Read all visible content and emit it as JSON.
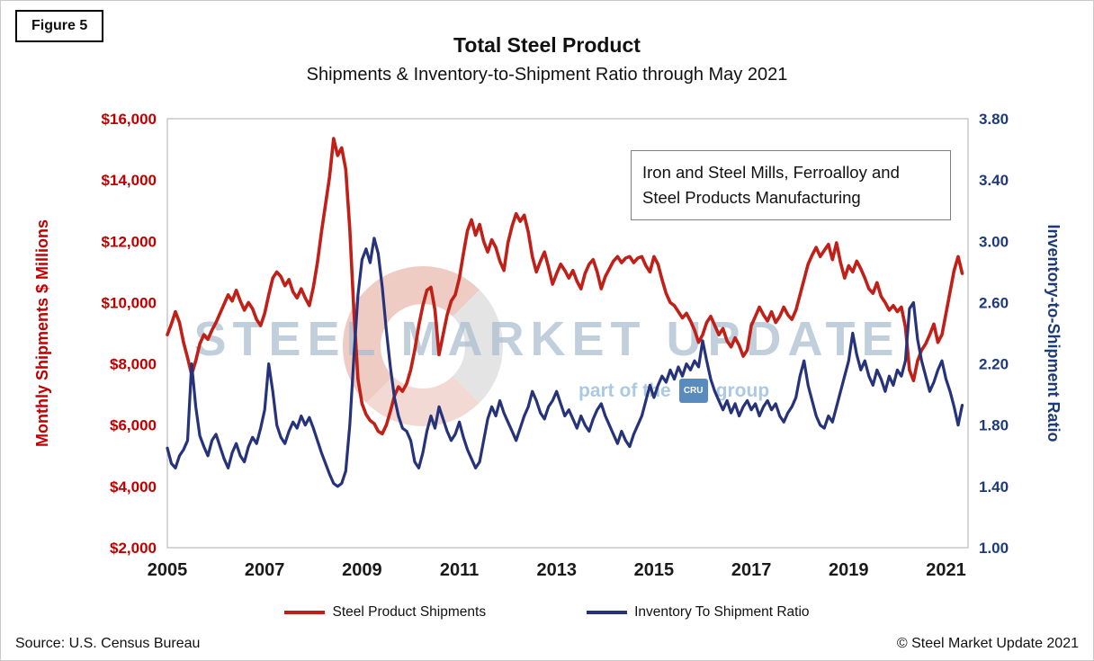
{
  "figure_label": "Figure 5",
  "title": "Total Steel Product",
  "subtitle": "Shipments & Inventory-to-Shipment Ratio through May 2021",
  "annotation": "Iron and Steel Mills, Ferroalloy and Steel Products Manufacturing",
  "watermark": {
    "main": "STEEL MARKET UPDATE",
    "sub_prefix": "part of the",
    "sub_box": "CRU",
    "sub_suffix": "group"
  },
  "footer": {
    "source": "Source: U.S. Census Bureau",
    "copyright": "© Steel Market Update 2021"
  },
  "colors": {
    "shipments_red": "#c02018",
    "ratio_navy": "#26337b",
    "left_axis_text": "#c00000",
    "right_axis_text": "#1f3a78",
    "plot_border": "#bfbfbf"
  },
  "chart_data": {
    "type": "line",
    "title": "Total Steel Product",
    "subtitle": "Shipments & Inventory-to-Shipment Ratio through May 2021",
    "x_start_year": 2005,
    "x_frequency": "monthly",
    "x_end": "May 2021",
    "grid": false,
    "legend_position": "bottom",
    "x_ticks": [
      2005,
      2007,
      2009,
      2011,
      2013,
      2015,
      2017,
      2019,
      2021
    ],
    "x_tick_labels": [
      "2005",
      "2007",
      "2009",
      "2011",
      "2013",
      "2015",
      "2017",
      "2019",
      "2021"
    ],
    "left_axis": {
      "label": "Monthly Shipments $ Millions",
      "min": 2000,
      "max": 16000,
      "ticks": [
        2000,
        4000,
        6000,
        8000,
        10000,
        12000,
        14000,
        16000
      ],
      "tick_labels": [
        "$2,000",
        "$4,000",
        "$6,000",
        "$8,000",
        "$10,000",
        "$12,000",
        "$14,000",
        "$16,000"
      ],
      "color": "#c00000"
    },
    "right_axis": {
      "label": "Inventory-to-Shipment Ratio",
      "min": 1.0,
      "max": 3.8,
      "ticks": [
        1.0,
        1.4,
        1.8,
        2.2,
        2.6,
        3.0,
        3.4,
        3.8
      ],
      "tick_labels": [
        "1.00",
        "1.40",
        "1.80",
        "2.20",
        "2.60",
        "3.00",
        "3.40",
        "3.80"
      ],
      "color": "#1f3a78"
    },
    "series": [
      {
        "name": "Steel Product Shipments",
        "axis": "left",
        "color": "#c02018",
        "values": [
          8950,
          9300,
          9700,
          9350,
          8700,
          8200,
          7650,
          8100,
          8650,
          8950,
          8800,
          9100,
          9350,
          9650,
          9950,
          10250,
          10050,
          10400,
          10050,
          9750,
          10000,
          9800,
          9450,
          9250,
          9650,
          10250,
          10800,
          11000,
          10850,
          10550,
          10750,
          10350,
          10150,
          10450,
          10150,
          9900,
          10500,
          11300,
          12300,
          13200,
          14100,
          15350,
          14800,
          15050,
          14350,
          12400,
          9700,
          7500,
          6700,
          6350,
          6150,
          6050,
          5800,
          5720,
          6000,
          6450,
          6950,
          7250,
          7100,
          7350,
          7800,
          8450,
          9250,
          9900,
          10400,
          10500,
          9750,
          8300,
          8950,
          9600,
          10050,
          10250,
          10800,
          11600,
          12350,
          12700,
          12200,
          12550,
          12000,
          11650,
          12050,
          11800,
          11350,
          11050,
          11950,
          12500,
          12900,
          12650,
          12850,
          12300,
          11500,
          11000,
          11350,
          11650,
          11150,
          10600,
          10950,
          11250,
          11050,
          10800,
          11050,
          10700,
          10450,
          10950,
          11250,
          11400,
          11000,
          10450,
          10850,
          11100,
          11350,
          11500,
          11300,
          11450,
          11500,
          11300,
          11450,
          11500,
          11200,
          11000,
          11500,
          11250,
          10750,
          10300,
          10000,
          9900,
          9700,
          9500,
          9650,
          9400,
          9100,
          8700,
          8950,
          9350,
          9550,
          9250,
          8950,
          9150,
          8750,
          8550,
          8850,
          8600,
          8250,
          8450,
          9250,
          9550,
          9850,
          9600,
          9400,
          9700,
          9350,
          9550,
          9850,
          9600,
          9450,
          9750,
          10250,
          10750,
          11250,
          11550,
          11800,
          11500,
          11700,
          11900,
          11400,
          11950,
          11300,
          10800,
          11200,
          11000,
          11350,
          11100,
          10800,
          10450,
          10300,
          10650,
          10200,
          10000,
          9750,
          9900,
          9700,
          9850,
          9200,
          7800,
          7450,
          8100,
          8450,
          8650,
          8950,
          9300,
          8700,
          8950,
          9650,
          10350,
          11050,
          11500,
          10950
        ]
      },
      {
        "name": "Inventory To Shipment Ratio",
        "axis": "right",
        "color": "#26337b",
        "values": [
          1.65,
          1.55,
          1.52,
          1.6,
          1.64,
          1.7,
          2.2,
          1.92,
          1.73,
          1.66,
          1.6,
          1.7,
          1.74,
          1.66,
          1.58,
          1.52,
          1.62,
          1.68,
          1.6,
          1.56,
          1.66,
          1.72,
          1.68,
          1.78,
          1.9,
          2.2,
          2.02,
          1.8,
          1.72,
          1.68,
          1.76,
          1.82,
          1.78,
          1.86,
          1.8,
          1.85,
          1.78,
          1.7,
          1.62,
          1.55,
          1.48,
          1.42,
          1.4,
          1.42,
          1.5,
          1.8,
          2.25,
          2.65,
          2.88,
          2.95,
          2.86,
          3.02,
          2.92,
          2.7,
          2.42,
          2.18,
          1.98,
          1.86,
          1.78,
          1.76,
          1.7,
          1.56,
          1.52,
          1.62,
          1.76,
          1.86,
          1.78,
          1.92,
          1.84,
          1.76,
          1.7,
          1.74,
          1.82,
          1.72,
          1.64,
          1.58,
          1.52,
          1.56,
          1.7,
          1.84,
          1.92,
          1.86,
          1.96,
          1.88,
          1.82,
          1.76,
          1.7,
          1.78,
          1.86,
          1.92,
          2.02,
          1.96,
          1.88,
          1.84,
          1.92,
          1.96,
          2.02,
          1.94,
          1.86,
          1.9,
          1.84,
          1.78,
          1.86,
          1.8,
          1.76,
          1.84,
          1.9,
          1.94,
          1.86,
          1.8,
          1.74,
          1.68,
          1.76,
          1.7,
          1.66,
          1.74,
          1.8,
          1.86,
          1.96,
          2.06,
          1.98,
          2.06,
          2.12,
          2.08,
          2.16,
          2.1,
          2.18,
          2.12,
          2.2,
          2.16,
          2.22,
          2.18,
          2.35,
          2.22,
          2.1,
          2.02,
          1.96,
          1.9,
          1.96,
          1.88,
          1.94,
          1.86,
          1.92,
          1.96,
          1.9,
          1.94,
          1.86,
          1.92,
          1.96,
          1.9,
          1.94,
          1.86,
          1.82,
          1.88,
          1.92,
          1.98,
          2.12,
          2.22,
          2.06,
          1.96,
          1.86,
          1.8,
          1.78,
          1.86,
          1.82,
          1.92,
          2.02,
          2.12,
          2.22,
          2.4,
          2.26,
          2.16,
          2.22,
          2.12,
          2.06,
          2.16,
          2.1,
          2.02,
          2.12,
          2.06,
          2.16,
          2.12,
          2.22,
          2.56,
          2.6,
          2.36,
          2.22,
          2.12,
          2.02,
          2.08,
          2.16,
          2.22,
          2.1,
          2.02,
          1.92,
          1.8,
          1.93
        ]
      }
    ]
  }
}
